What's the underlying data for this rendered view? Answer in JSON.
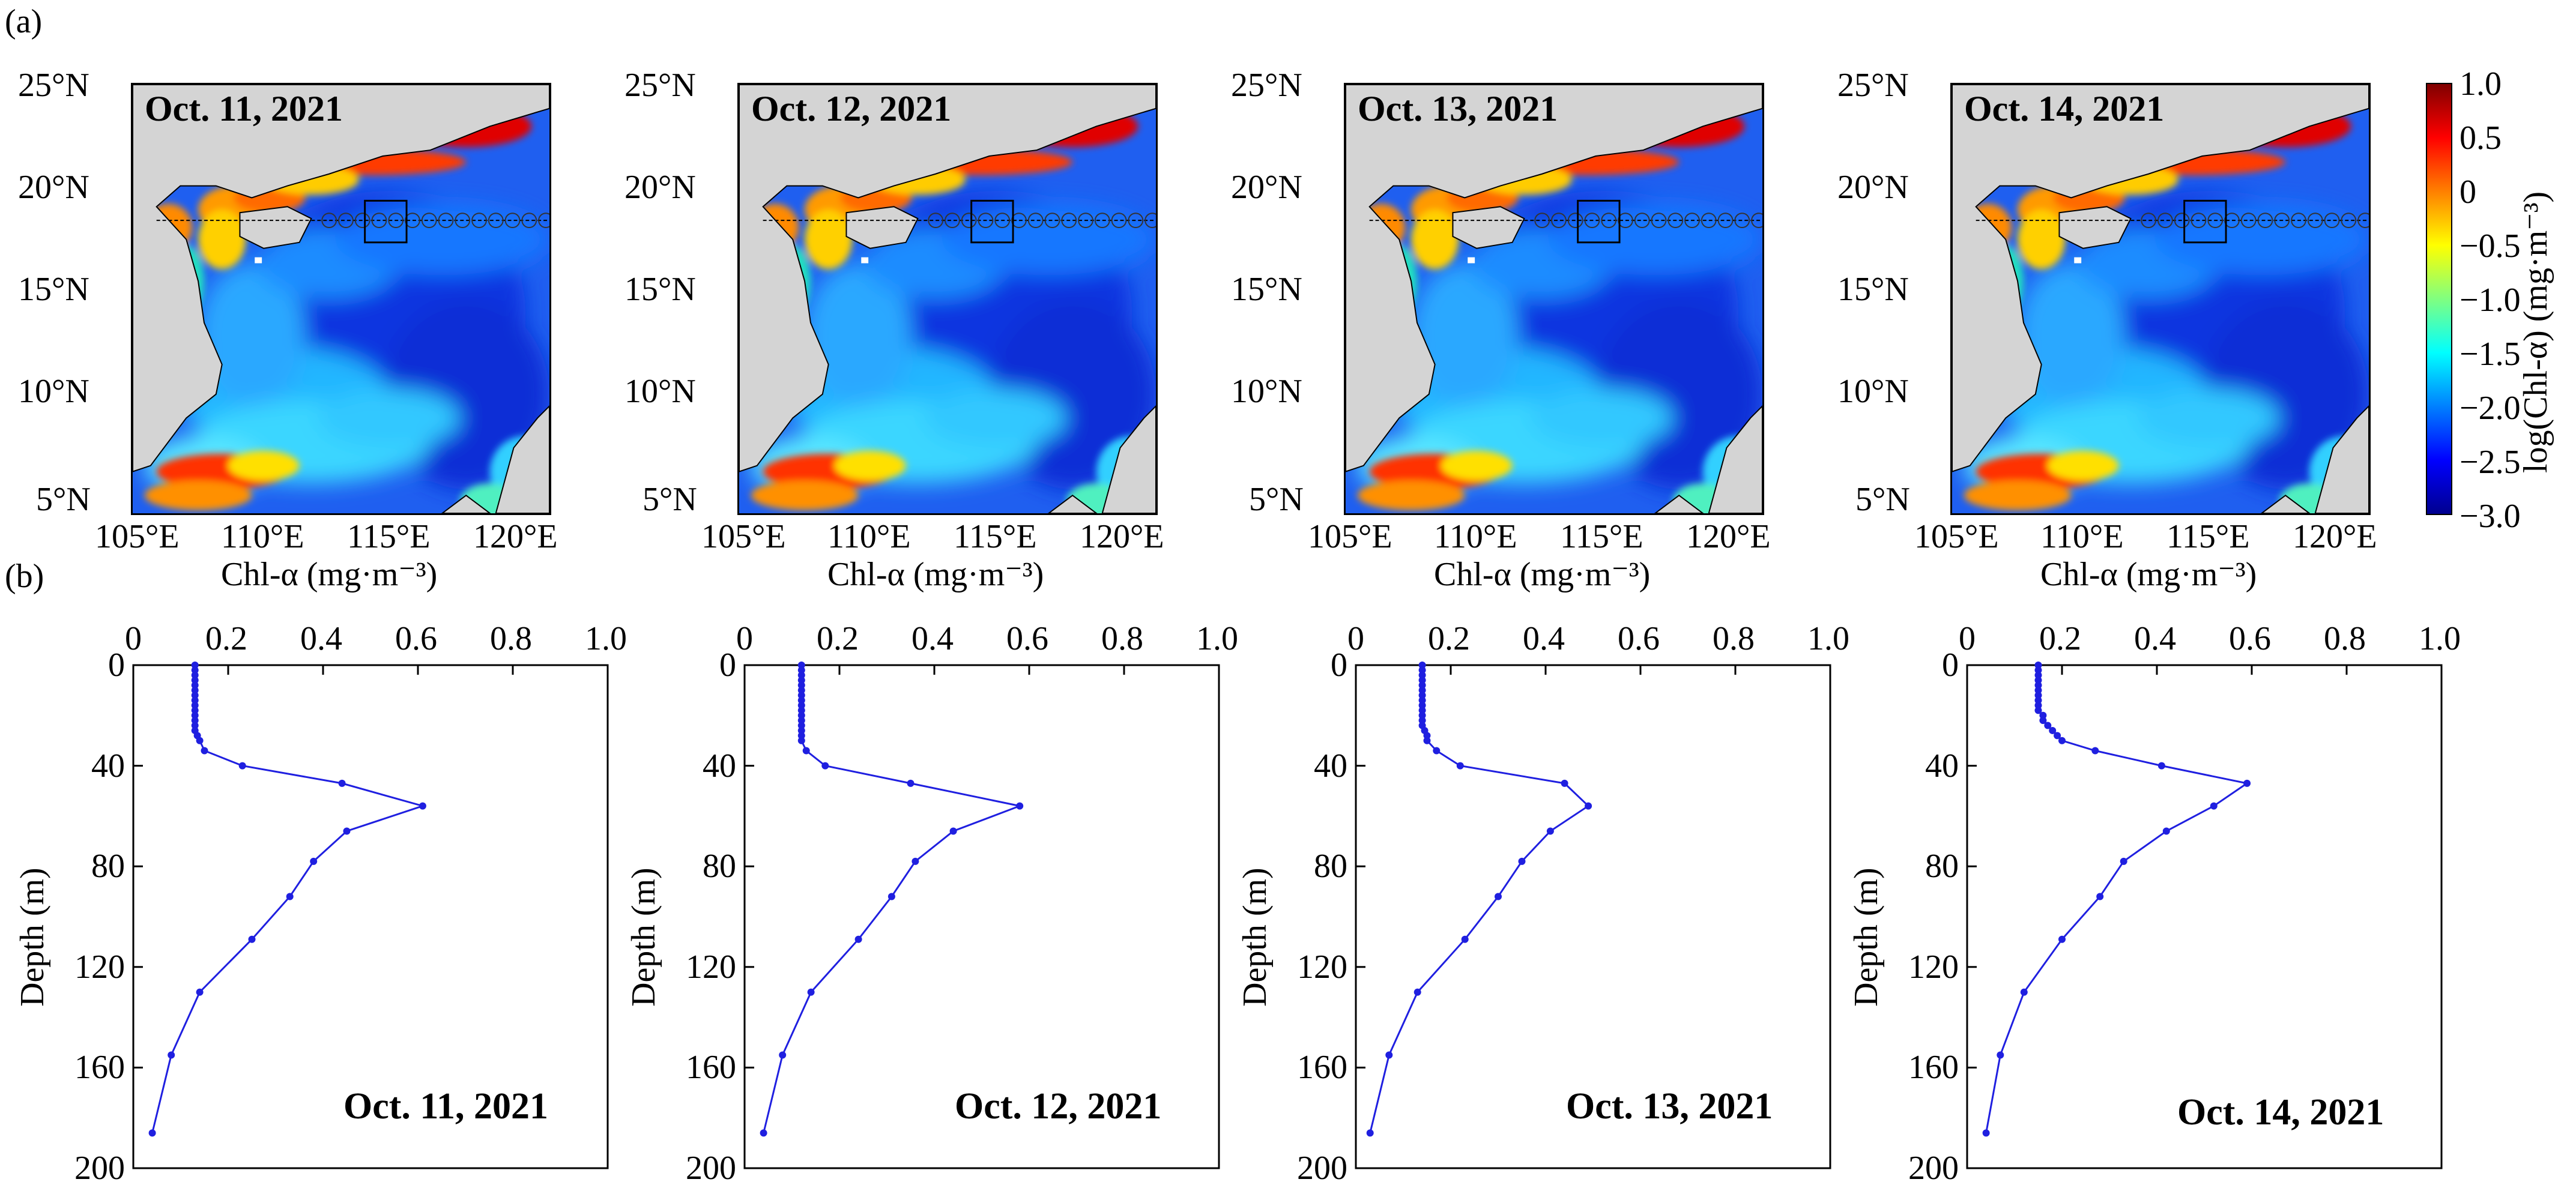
{
  "panel_labels": {
    "a": "(a)",
    "b": "(b)"
  },
  "colors": {
    "land": "#d4d4d4",
    "profile_line": "#1f1fe0",
    "colormap": [
      "#00008f",
      "#0000ff",
      "#0080ff",
      "#00ffff",
      "#80ff80",
      "#ffff00",
      "#ff8000",
      "#ff0000",
      "#800000"
    ]
  },
  "map_axes": {
    "lat_ticks": [
      "25°N",
      "20°N",
      "15°N",
      "10°N",
      "5°N"
    ],
    "lon_ticks": [
      "105°E",
      "110°E",
      "115°E",
      "120°E"
    ]
  },
  "maps": [
    {
      "date": "Oct. 11, 2021",
      "xlabel": "Chl-α (mg·m⁻³)"
    },
    {
      "date": "Oct. 12, 2021",
      "xlabel": "Chl-α (mg·m⁻³)"
    },
    {
      "date": "Oct. 13, 2021",
      "xlabel": "Chl-α (mg·m⁻³)"
    },
    {
      "date": "Oct. 14, 2021",
      "xlabel": "Chl-α (mg·m⁻³)"
    }
  ],
  "colorbar": {
    "label": "log(Chl-α) (mg·m⁻³)",
    "ticks": [
      "1.0",
      "0.5",
      "0",
      "−0.5",
      "−1.0",
      "−1.5",
      "−2.0",
      "−2.5",
      "−3.0"
    ]
  },
  "chart_data": [
    {
      "type": "line",
      "title": "Oct. 11, 2021",
      "ylabel": "Depth (m)",
      "xlim": [
        0,
        1.0
      ],
      "ylim": [
        200,
        0
      ],
      "x_ticks": [
        "0",
        "0.2",
        "0.4",
        "0.6",
        "0.8",
        "1.0"
      ],
      "y_ticks": [
        "0",
        "40",
        "80",
        "120",
        "160",
        "200"
      ],
      "depth": [
        0,
        2,
        4,
        6,
        8,
        10,
        12,
        14,
        16,
        18,
        20,
        22,
        24,
        26,
        28,
        30,
        34,
        40,
        47,
        56,
        66,
        78,
        92,
        109,
        130,
        155,
        186
      ],
      "chl": [
        0.13,
        0.13,
        0.13,
        0.13,
        0.13,
        0.13,
        0.13,
        0.13,
        0.13,
        0.13,
        0.13,
        0.13,
        0.13,
        0.13,
        0.135,
        0.14,
        0.15,
        0.23,
        0.44,
        0.61,
        0.45,
        0.38,
        0.33,
        0.25,
        0.14,
        0.08,
        0.04
      ]
    },
    {
      "type": "line",
      "title": "Oct. 12, 2021",
      "ylabel": "Depth (m)",
      "xlim": [
        0,
        1.0
      ],
      "ylim": [
        200,
        0
      ],
      "x_ticks": [
        "0",
        "0.2",
        "0.4",
        "0.6",
        "0.8",
        "1.0"
      ],
      "y_ticks": [
        "0",
        "40",
        "80",
        "120",
        "160",
        "200"
      ],
      "depth": [
        0,
        2,
        4,
        6,
        8,
        10,
        12,
        14,
        16,
        18,
        20,
        22,
        24,
        26,
        28,
        30,
        34,
        40,
        47,
        56,
        66,
        78,
        92,
        109,
        130,
        155,
        186
      ],
      "chl": [
        0.12,
        0.12,
        0.12,
        0.12,
        0.12,
        0.12,
        0.12,
        0.12,
        0.12,
        0.12,
        0.12,
        0.12,
        0.12,
        0.12,
        0.12,
        0.12,
        0.13,
        0.17,
        0.35,
        0.58,
        0.44,
        0.36,
        0.31,
        0.24,
        0.14,
        0.08,
        0.04
      ]
    },
    {
      "type": "line",
      "title": "Oct. 13, 2021",
      "ylabel": "Depth (m)",
      "xlim": [
        0,
        1.0
      ],
      "ylim": [
        200,
        0
      ],
      "x_ticks": [
        "0",
        "0.2",
        "0.4",
        "0.6",
        "0.8",
        "1.0"
      ],
      "y_ticks": [
        "0",
        "40",
        "80",
        "120",
        "160",
        "200"
      ],
      "depth": [
        0,
        2,
        4,
        6,
        8,
        10,
        12,
        14,
        16,
        18,
        20,
        22,
        24,
        26,
        28,
        30,
        34,
        40,
        47,
        56,
        66,
        78,
        92,
        109,
        130,
        155,
        186
      ],
      "chl": [
        0.14,
        0.14,
        0.14,
        0.14,
        0.14,
        0.14,
        0.14,
        0.14,
        0.14,
        0.14,
        0.14,
        0.14,
        0.14,
        0.145,
        0.15,
        0.15,
        0.17,
        0.22,
        0.44,
        0.49,
        0.41,
        0.35,
        0.3,
        0.23,
        0.13,
        0.07,
        0.03
      ]
    },
    {
      "type": "line",
      "title": "Oct. 14, 2021",
      "ylabel": "Depth (m)",
      "xlim": [
        0,
        1.0
      ],
      "ylim": [
        200,
        0
      ],
      "x_ticks": [
        "0",
        "0.2",
        "0.4",
        "0.6",
        "0.8",
        "1.0"
      ],
      "y_ticks": [
        "0",
        "40",
        "80",
        "120",
        "160",
        "200"
      ],
      "depth": [
        0,
        2,
        4,
        6,
        8,
        10,
        12,
        14,
        16,
        18,
        20,
        22,
        24,
        26,
        28,
        30,
        34,
        40,
        47,
        56,
        66,
        78,
        92,
        109,
        130,
        155,
        186
      ],
      "chl": [
        0.15,
        0.15,
        0.15,
        0.15,
        0.15,
        0.15,
        0.15,
        0.15,
        0.15,
        0.15,
        0.16,
        0.16,
        0.17,
        0.18,
        0.19,
        0.2,
        0.27,
        0.41,
        0.59,
        0.52,
        0.42,
        0.33,
        0.28,
        0.2,
        0.12,
        0.07,
        0.04
      ]
    }
  ]
}
